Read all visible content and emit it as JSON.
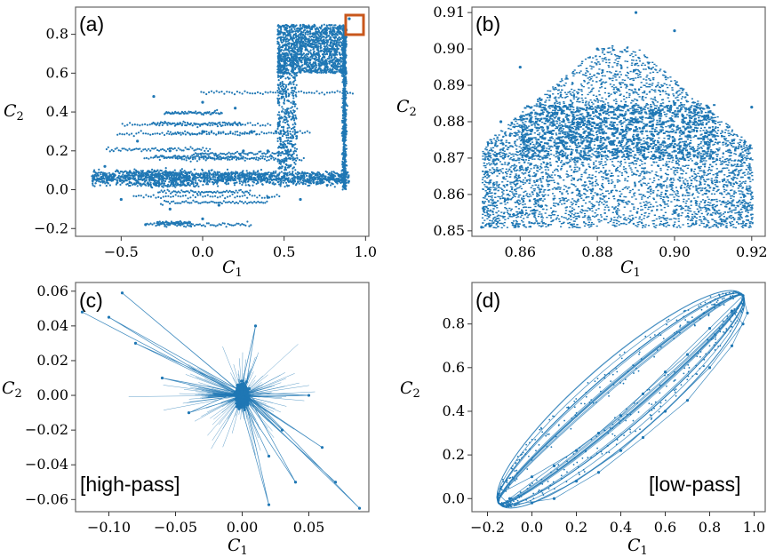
{
  "colors": {
    "series": "#1f77b4",
    "highlight_box": "#c8571c",
    "frame": "#666666"
  },
  "chart_data": [
    {
      "panel": "(a)",
      "type": "scatter",
      "xlabel": "C",
      "xlabel_sub": "1",
      "ylabel": "C",
      "ylabel_sub": "2",
      "xlim": [
        -0.78,
        1.02
      ],
      "ylim": [
        -0.24,
        0.94
      ],
      "xticks": [
        -0.5,
        0.0,
        0.5,
        1.0
      ],
      "xtick_labels": [
        "−0.5",
        "0.0",
        "0.5",
        "1.0"
      ],
      "yticks": [
        -0.2,
        0.0,
        0.2,
        0.4,
        0.6,
        0.8
      ],
      "ytick_labels": [
        "−0.2",
        "0.0",
        "0.2",
        "0.4",
        "0.6",
        "0.8"
      ],
      "highlight_region": {
        "x": [
          0.85,
          0.92
        ],
        "y": [
          0.85,
          0.91
        ]
      },
      "series": [
        {
          "points": [
            [
              -0.65,
              0.05
            ],
            [
              -0.55,
              0.08
            ],
            [
              -0.45,
              0.06
            ],
            [
              -0.3,
              0.05
            ],
            [
              -0.1,
              0.06
            ],
            [
              0.1,
              0.05
            ],
            [
              0.3,
              0.06
            ],
            [
              0.5,
              0.07
            ],
            [
              0.7,
              0.08
            ],
            [
              0.88,
              0.08
            ],
            [
              -0.6,
              0.12
            ],
            [
              -0.4,
              0.25
            ],
            [
              -0.3,
              0.48
            ],
            [
              0.0,
              0.45
            ],
            [
              0.2,
              0.42
            ],
            [
              0.3,
              0.3
            ],
            [
              0.4,
              0.2
            ],
            [
              -0.2,
              0.2
            ],
            [
              0.0,
              0.3
            ],
            [
              0.25,
              0.2
            ],
            [
              -0.5,
              -0.05
            ],
            [
              -0.2,
              -0.1
            ],
            [
              0.1,
              -0.08
            ],
            [
              0.4,
              -0.04
            ],
            [
              -0.35,
              -0.18
            ],
            [
              0.0,
              -0.15
            ],
            [
              0.6,
              -0.05
            ],
            [
              0.45,
              0.3
            ],
            [
              0.5,
              0.6
            ],
            [
              0.55,
              0.75
            ],
            [
              0.6,
              0.8
            ],
            [
              0.7,
              0.7
            ],
            [
              0.8,
              0.82
            ],
            [
              0.88,
              0.6
            ],
            [
              0.88,
              0.3
            ],
            [
              0.9,
              0.88
            ]
          ]
        }
      ]
    },
    {
      "panel": "(b)",
      "type": "scatter",
      "xlabel": "C",
      "xlabel_sub": "1",
      "ylabel": "C",
      "ylabel_sub": "2",
      "xlim": [
        0.8475,
        0.9235
      ],
      "ylim": [
        0.8485,
        0.9115
      ],
      "xticks": [
        0.86,
        0.88,
        0.9,
        0.92
      ],
      "xtick_labels": [
        "0.86",
        "0.88",
        "0.90",
        "0.92"
      ],
      "yticks": [
        0.85,
        0.86,
        0.87,
        0.88,
        0.89,
        0.9,
        0.91
      ],
      "ytick_labels": [
        "0.85",
        "0.86",
        "0.87",
        "0.88",
        "0.89",
        "0.90",
        "0.91"
      ],
      "series": [
        {
          "points": [
            [
              0.85,
              0.851
            ],
            [
              0.86,
              0.855
            ],
            [
              0.87,
              0.87
            ],
            [
              0.88,
              0.875
            ],
            [
              0.89,
              0.88
            ],
            [
              0.9,
              0.885
            ],
            [
              0.91,
              0.88
            ],
            [
              0.92,
              0.884
            ],
            [
              0.87,
              0.89
            ],
            [
              0.88,
              0.9
            ],
            [
              0.89,
              0.91
            ],
            [
              0.9,
              0.905
            ],
            [
              0.86,
              0.895
            ],
            [
              0.855,
              0.88
            ],
            [
              0.9,
              0.855
            ],
            [
              0.88,
              0.86
            ]
          ]
        }
      ]
    },
    {
      "panel": "(c)",
      "type": "line",
      "annotation": "[high-pass]",
      "xlabel": "C",
      "xlabel_sub": "1",
      "ylabel": "C",
      "ylabel_sub": "2",
      "xlim": [
        -0.125,
        0.095
      ],
      "ylim": [
        -0.067,
        0.065
      ],
      "xticks": [
        -0.1,
        -0.05,
        0.0,
        0.05
      ],
      "xtick_labels": [
        "−0.10",
        "−0.05",
        "0.00",
        "0.05"
      ],
      "yticks": [
        -0.06,
        -0.04,
        -0.02,
        0.0,
        0.02,
        0.04,
        0.06
      ],
      "ytick_labels": [
        "−0.06",
        "−0.04",
        "−0.02",
        "0.00",
        "0.02",
        "0.04",
        "0.06"
      ],
      "series": [
        {
          "points": [
            [
              0,
              0
            ],
            [
              -0.12,
              0.048
            ],
            [
              0.005,
              -0.002
            ],
            [
              -0.09,
              0.059
            ],
            [
              0,
              0.001
            ],
            [
              0.088,
              -0.065
            ],
            [
              0.002,
              0.003
            ],
            [
              0.04,
              -0.05
            ],
            [
              -0.003,
              0
            ],
            [
              0.02,
              -0.063
            ],
            [
              0.001,
              0.002
            ],
            [
              -0.08,
              0.03
            ],
            [
              0.003,
              -0.001
            ],
            [
              0.06,
              -0.03
            ],
            [
              -0.002,
              0.002
            ],
            [
              0.05,
              0.0
            ],
            [
              0,
              -0.001
            ],
            [
              -0.06,
              0.01
            ],
            [
              0.002,
              0.001
            ],
            [
              0.01,
              0.04
            ],
            [
              -0.001,
              0.003
            ],
            [
              -0.04,
              -0.01
            ],
            [
              0.004,
              0.0
            ],
            [
              0.03,
              -0.02
            ],
            [
              0,
              0.002
            ],
            [
              -0.1,
              0.045
            ],
            [
              0.003,
              -0.003
            ],
            [
              0.07,
              -0.05
            ],
            [
              -0.002,
              0.001
            ],
            [
              0.02,
              -0.035
            ]
          ]
        }
      ]
    },
    {
      "panel": "(d)",
      "type": "line",
      "annotation": "[low-pass]",
      "xlabel": "C",
      "xlabel_sub": "1",
      "ylabel": "C",
      "ylabel_sub": "2",
      "xlim": [
        -0.27,
        1.05
      ],
      "ylim": [
        -0.06,
        0.99
      ],
      "xticks": [
        -0.2,
        0.0,
        0.2,
        0.4,
        0.6,
        0.8,
        1.0
      ],
      "xtick_labels": [
        "−0.2",
        "0.0",
        "0.2",
        "0.4",
        "0.6",
        "0.8",
        "1.0"
      ],
      "yticks": [
        0.0,
        0.2,
        0.4,
        0.6,
        0.8
      ],
      "ytick_labels": [
        "0.0",
        "0.2",
        "0.4",
        "0.6",
        "0.8"
      ],
      "series": [
        {
          "points": [
            [
              -0.15,
              0.02
            ],
            [
              0.0,
              0.1
            ],
            [
              0.2,
              0.22
            ],
            [
              0.4,
              0.38
            ],
            [
              0.6,
              0.58
            ],
            [
              0.8,
              0.78
            ],
            [
              0.95,
              0.93
            ],
            [
              0.97,
              0.85
            ],
            [
              0.9,
              0.7
            ],
            [
              0.7,
              0.45
            ],
            [
              0.5,
              0.28
            ],
            [
              0.3,
              0.12
            ],
            [
              0.1,
              0.0
            ],
            [
              -0.1,
              -0.03
            ],
            [
              -0.15,
              0.02
            ]
          ]
        },
        {
          "points": [
            [
              -0.1,
              0.0
            ],
            [
              0.1,
              0.15
            ],
            [
              0.3,
              0.3
            ],
            [
              0.5,
              0.48
            ],
            [
              0.7,
              0.66
            ],
            [
              0.9,
              0.86
            ],
            [
              0.95,
              0.8
            ],
            [
              0.8,
              0.6
            ],
            [
              0.6,
              0.4
            ],
            [
              0.4,
              0.22
            ],
            [
              0.2,
              0.08
            ],
            [
              0.0,
              -0.02
            ]
          ]
        }
      ]
    }
  ]
}
